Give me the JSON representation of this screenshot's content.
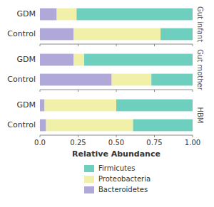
{
  "chart_data": [
    {
      "type": "bar",
      "orientation": "horizontal",
      "stacked": true,
      "title": "Gut infant",
      "categories": [
        "GDM",
        "Control"
      ],
      "series": [
        {
          "name": "Bacteroidetes",
          "color": "#b0a8d8",
          "values": [
            0.11,
            0.22
          ]
        },
        {
          "name": "Proteobacteria",
          "color": "#f0f0a8",
          "values": [
            0.13,
            0.57
          ]
        },
        {
          "name": "Firmicutes",
          "color": "#6ecfbe",
          "values": [
            0.76,
            0.21
          ]
        }
      ],
      "xlim": [
        0.0,
        1.0
      ],
      "xticks": [
        {
          "value": 0.0,
          "label": "0.0"
        },
        0.25,
        {
          "value": 0.5,
          "label": "0.50"
        },
        0.75,
        {
          "value": 1.0,
          "label": "1.00"
        }
      ],
      "tick_labels": "y"
    },
    {
      "type": "bar",
      "orientation": "horizontal",
      "stacked": true,
      "title": "Gut mother",
      "categories": [
        "GDM",
        "Control"
      ],
      "series": [
        {
          "name": "Bacteroidetes",
          "color": "#b0a8d8",
          "values": [
            0.22,
            0.47
          ]
        },
        {
          "name": "Proteobacteria",
          "color": "#f0f0a8",
          "values": [
            0.07,
            0.26
          ]
        },
        {
          "name": "Firmicutes",
          "color": "#6ecfbe",
          "values": [
            0.71,
            0.27
          ]
        }
      ],
      "xlim": [
        0.0,
        1.0
      ],
      "xticks": [
        {
          "value": 0.0,
          "label": "0.0"
        },
        0.25,
        {
          "value": 0.5,
          "label": "0.50"
        },
        0.75,
        {
          "value": 1.0,
          "label": "1.00"
        }
      ],
      "tick_labels": "y"
    },
    {
      "type": "bar",
      "orientation": "horizontal",
      "stacked": true,
      "title": "HBM",
      "categories": [
        "GDM",
        "Control"
      ],
      "series": [
        {
          "name": "Bacteroidetes",
          "color": "#b0a8d8",
          "values": [
            0.03,
            0.04
          ]
        },
        {
          "name": "Proteobacteria",
          "color": "#f0f0a8",
          "values": [
            0.47,
            0.57
          ]
        },
        {
          "name": "Firmicutes",
          "color": "#6ecfbe",
          "values": [
            0.5,
            0.39
          ]
        }
      ],
      "xlim": [
        0.0,
        1.0
      ],
      "xticks": [
        {
          "value": 0.0,
          "label": "0.0"
        },
        0.25,
        {
          "value": 0.5,
          "label": "0.50"
        },
        0.75,
        {
          "value": 1.0,
          "label": "1.00"
        }
      ],
      "xlabel": "Relative Abundance",
      "legend": "bottom"
    }
  ]
}
